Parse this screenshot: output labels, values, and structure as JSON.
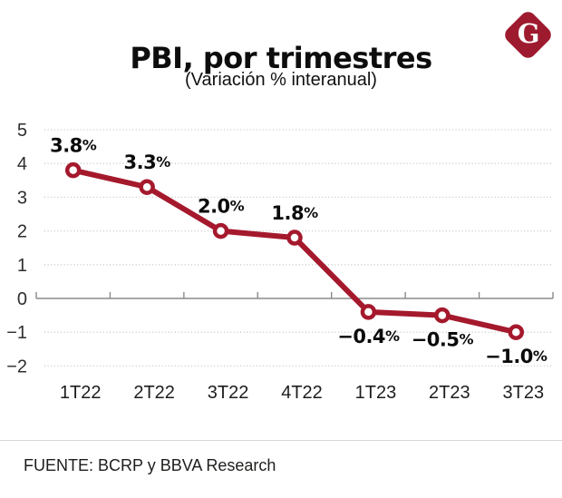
{
  "header": {
    "title": "PBI, por trimestres",
    "subtitle": "(Variación % interanual)",
    "logo_letter": "G"
  },
  "chart_data": {
    "type": "line",
    "title": "PBI, por trimestres",
    "subtitle": "(Variación % interanual)",
    "categories": [
      "1T22",
      "2T22",
      "3T22",
      "4T22",
      "1T23",
      "2T23",
      "3T23"
    ],
    "values": [
      3.8,
      3.3,
      2.0,
      1.8,
      -0.4,
      -0.5,
      -1.0
    ],
    "point_labels": [
      "3.8%",
      "3.3%",
      "2.0%",
      "1.8%",
      "-0.4%",
      "-0.5%",
      "-1.0%"
    ],
    "label_positions": [
      "above",
      "above",
      "above",
      "above",
      "below",
      "below",
      "below"
    ],
    "xlabel": "",
    "ylabel": "",
    "ylim": [
      -2,
      5
    ],
    "yticks": [
      5,
      4,
      3,
      2,
      1,
      0,
      -1,
      -2
    ],
    "grid": "horizontal-dotted",
    "legend": "none",
    "marker": "open-circle"
  },
  "footer": {
    "source": "FUENTE: BCRP y BBVA Research"
  },
  "colors": {
    "line_red": "#A5192D",
    "logo_red": "#9E1B2F",
    "grid_gray": "#c6c6c6",
    "axis_gray": "#8a8a8a",
    "divider_gray": "#d8d8d8",
    "label_black": "#0b0b0b",
    "tick_text": "#2e2e2e",
    "category_text": "#1d1d1b"
  }
}
